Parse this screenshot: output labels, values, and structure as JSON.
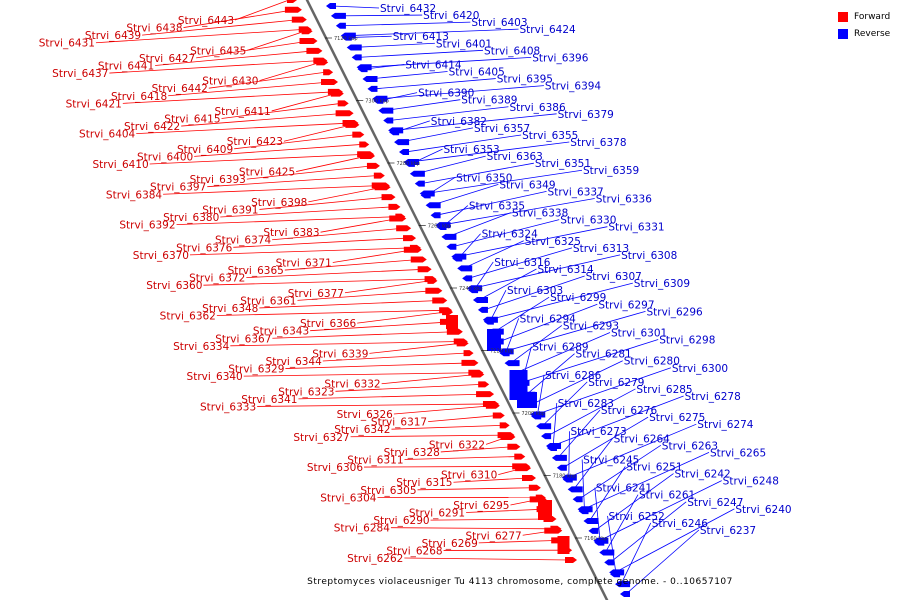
{
  "colors": {
    "forward": "#ff0000",
    "reverse": "#0000ff",
    "forward_label": "#cc0000",
    "reverse_label": "#0000cc",
    "backbone": "#666666"
  },
  "legend": {
    "forward": "Forward",
    "reverse": "Reverse"
  },
  "caption": "Streptomyces violaceusniger Tu 4113 chromosome, complete genome. - 0..10657107",
  "ticks": [
    "7120 kbp",
    "7300 kbp",
    "7280 kbp",
    "7260 kbp",
    "7240 kbp",
    "7220 kbp",
    "7200 kbp",
    "7180 kbp",
    "7160 kbp"
  ],
  "forward_genes": [
    "Strvi_6443",
    "Strvi_6438",
    "Strvi_6439",
    "Strvi_6431",
    "Strvi_6435",
    "Strvi_6427",
    "Strvi_6441",
    "Strvi_6437",
    "Strvi_6430",
    "Strvi_6442",
    "Strvi_6418",
    "Strvi_6421",
    "Strvi_6411",
    "Strvi_6415",
    "Strvi_6422",
    "Strvi_6404",
    "Strvi_6423",
    "Strvi_6409",
    "Strvi_6400",
    "Strvi_6410",
    "Strvi_6425",
    "Strvi_6393",
    "Strvi_6397",
    "Strvi_6384",
    "Strvi_6398",
    "Strvi_6391",
    "Strvi_6380",
    "Strvi_6392",
    "Strvi_6383",
    "Strvi_6374",
    "Strvi_6376",
    "Strvi_6370",
    "Strvi_6371",
    "Strvi_6365",
    "Strvi_6372",
    "Strvi_6360",
    "Strvi_6377",
    "Strvi_6361",
    "Strvi_6348",
    "Strvi_6362",
    "Strvi_6366",
    "Strvi_6343",
    "Strvi_6367",
    "Strvi_6334",
    "Strvi_6339",
    "Strvi_6344",
    "Strvi_6329",
    "Strvi_6340",
    "Strvi_6332",
    "Strvi_6323",
    "Strvi_6341",
    "Strvi_6333",
    "Strvi_6326",
    "Strvi_6317",
    "Strvi_6342",
    "Strvi_6327",
    "Strvi_6322",
    "Strvi_6328",
    "Strvi_6311",
    "Strvi_6306",
    "Strvi_6310",
    "Strvi_6315",
    "Strvi_6305",
    "Strvi_6304",
    "Strvi_6295",
    "Strvi_6291",
    "Strvi_6290",
    "Strvi_6284",
    "Strvi_6277",
    "Strvi_6269",
    "Strvi_6268",
    "Strvi_6262"
  ],
  "reverse_genes": [
    "Strvi_6432",
    "Strvi_6420",
    "Strvi_6403",
    "Strvi_6424",
    "Strvi_6413",
    "Strvi_6401",
    "Strvi_6408",
    "Strvi_6396",
    "Strvi_6414",
    "Strvi_6405",
    "Strvi_6395",
    "Strvi_6394",
    "Strvi_6390",
    "Strvi_6389",
    "Strvi_6386",
    "Strvi_6379",
    "Strvi_6382",
    "Strvi_6357",
    "Strvi_6355",
    "Strvi_6378",
    "Strvi_6353",
    "Strvi_6363",
    "Strvi_6351",
    "Strvi_6359",
    "Strvi_6350",
    "Strvi_6349",
    "Strvi_6337",
    "Strvi_6336",
    "Strvi_6335",
    "Strvi_6338",
    "Strvi_6330",
    "Strvi_6331",
    "Strvi_6324",
    "Strvi_6325",
    "Strvi_6313",
    "Strvi_6308",
    "Strvi_6316",
    "Strvi_6314",
    "Strvi_6307",
    "Strvi_6309",
    "Strvi_6303",
    "Strvi_6299",
    "Strvi_6297",
    "Strvi_6296",
    "Strvi_6294",
    "Strvi_6293",
    "Strvi_6301",
    "Strvi_6298",
    "Strvi_6289",
    "Strvi_6281",
    "Strvi_6280",
    "Strvi_6300",
    "Strvi_6286",
    "Strvi_6279",
    "Strvi_6285",
    "Strvi_6278",
    "Strvi_6283",
    "Strvi_6276",
    "Strvi_6275",
    "Strvi_6274",
    "Strvi_6273",
    "Strvi_6264",
    "Strvi_6263",
    "Strvi_6265",
    "Strvi_6245",
    "Strvi_6251",
    "Strvi_6242",
    "Strvi_6248",
    "Strvi_6241",
    "Strvi_6261",
    "Strvi_6247",
    "Strvi_6240",
    "Strvi_6252",
    "Strvi_6246",
    "Strvi_6237"
  ]
}
